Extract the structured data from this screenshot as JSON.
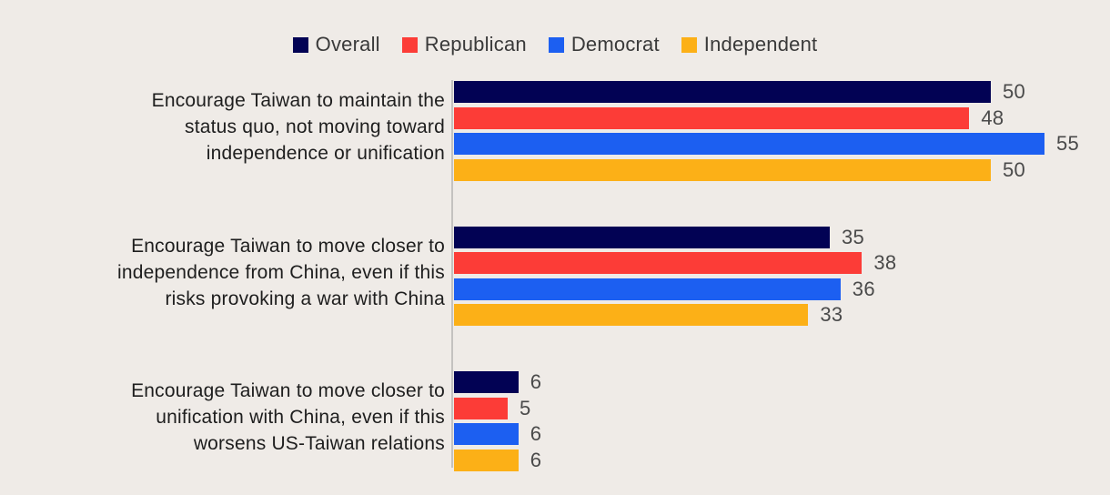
{
  "background_color": "#efebe7",
  "axis_color": "#c4c2c0",
  "legend": {
    "items": [
      {
        "label": "Overall",
        "color": "#020254"
      },
      {
        "label": "Republican",
        "color": "#fc3c37"
      },
      {
        "label": "Democrat",
        "color": "#1c5ff1"
      },
      {
        "label": "Independent",
        "color": "#fcb017"
      }
    ]
  },
  "chart_data": {
    "type": "bar",
    "orientation": "horizontal",
    "title": "",
    "xlabel": "",
    "ylabel": "",
    "xlim": [
      0,
      55
    ],
    "grid": false,
    "legend_position": "top",
    "value_labels_shown": true,
    "categories": [
      "Encourage Taiwan to maintain the status quo, not moving toward independence or unification",
      "Encourage Taiwan to move closer to independence from China, even if this risks provoking a war with China",
      "Encourage Taiwan to move closer to unification with China, even if this worsens US-Taiwan relations"
    ],
    "category_lines": [
      [
        "Encourage Taiwan to maintain the",
        "status quo, not moving toward",
        "independence or unification"
      ],
      [
        "Encourage Taiwan to move closer to",
        "independence from China, even if this",
        "risks provoking a war with China"
      ],
      [
        "Encourage Taiwan to move closer to",
        "unification with China, even if this",
        "worsens US-Taiwan relations"
      ]
    ],
    "series": [
      {
        "name": "Overall",
        "color": "#020254",
        "values": [
          50,
          35,
          6
        ]
      },
      {
        "name": "Republican",
        "color": "#fc3c37",
        "values": [
          48,
          38,
          5
        ]
      },
      {
        "name": "Democrat",
        "color": "#1c5ff1",
        "values": [
          55,
          36,
          6
        ]
      },
      {
        "name": "Independent",
        "color": "#fcb017",
        "values": [
          50,
          33,
          6
        ]
      }
    ]
  }
}
